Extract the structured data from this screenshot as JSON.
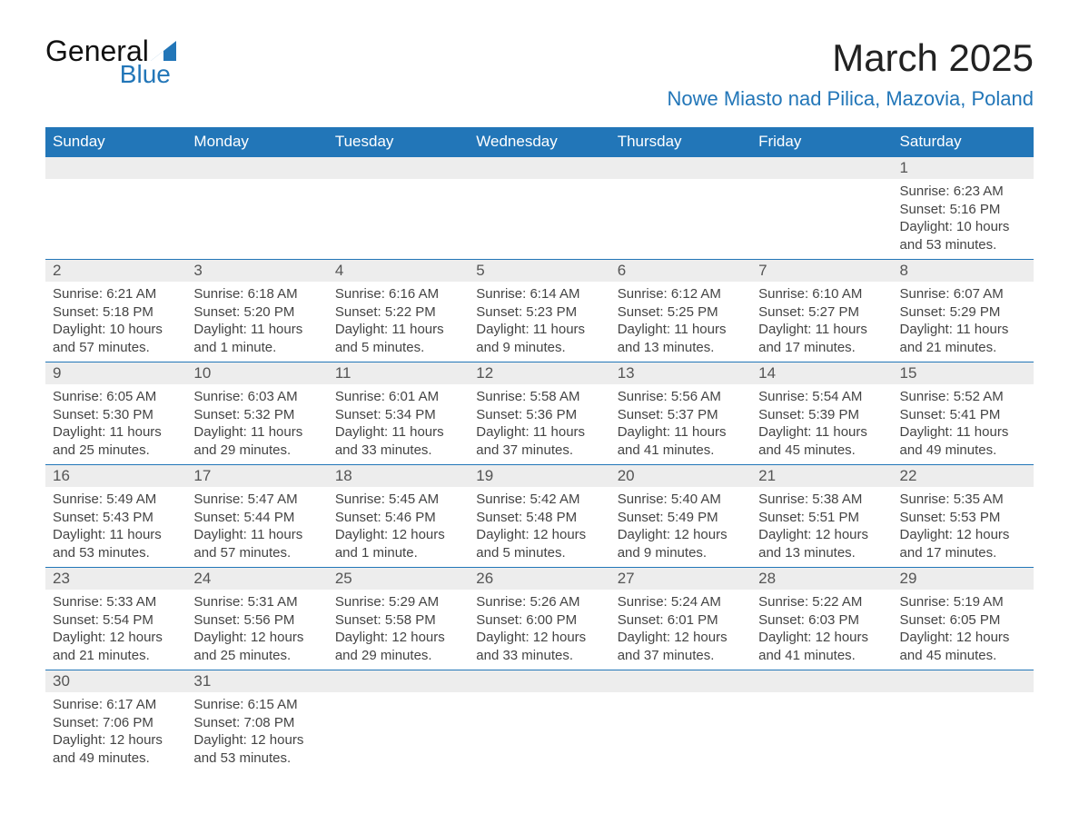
{
  "logo": {
    "name_part1": "General",
    "name_part2": "Blue"
  },
  "header": {
    "month_title": "March 2025",
    "location": "Nowe Miasto nad Pilica, Mazovia, Poland"
  },
  "colors": {
    "brand_blue": "#2276b8",
    "header_bg": "#2276b8",
    "header_text": "#ffffff",
    "daynum_bg": "#ededed",
    "text": "#333333"
  },
  "weekdays": [
    "Sunday",
    "Monday",
    "Tuesday",
    "Wednesday",
    "Thursday",
    "Friday",
    "Saturday"
  ],
  "weeks": [
    [
      null,
      null,
      null,
      null,
      null,
      null,
      {
        "n": "1",
        "sr": "Sunrise: 6:23 AM",
        "ss": "Sunset: 5:16 PM",
        "d1": "Daylight: 10 hours",
        "d2": "and 53 minutes."
      }
    ],
    [
      {
        "n": "2",
        "sr": "Sunrise: 6:21 AM",
        "ss": "Sunset: 5:18 PM",
        "d1": "Daylight: 10 hours",
        "d2": "and 57 minutes."
      },
      {
        "n": "3",
        "sr": "Sunrise: 6:18 AM",
        "ss": "Sunset: 5:20 PM",
        "d1": "Daylight: 11 hours",
        "d2": "and 1 minute."
      },
      {
        "n": "4",
        "sr": "Sunrise: 6:16 AM",
        "ss": "Sunset: 5:22 PM",
        "d1": "Daylight: 11 hours",
        "d2": "and 5 minutes."
      },
      {
        "n": "5",
        "sr": "Sunrise: 6:14 AM",
        "ss": "Sunset: 5:23 PM",
        "d1": "Daylight: 11 hours",
        "d2": "and 9 minutes."
      },
      {
        "n": "6",
        "sr": "Sunrise: 6:12 AM",
        "ss": "Sunset: 5:25 PM",
        "d1": "Daylight: 11 hours",
        "d2": "and 13 minutes."
      },
      {
        "n": "7",
        "sr": "Sunrise: 6:10 AM",
        "ss": "Sunset: 5:27 PM",
        "d1": "Daylight: 11 hours",
        "d2": "and 17 minutes."
      },
      {
        "n": "8",
        "sr": "Sunrise: 6:07 AM",
        "ss": "Sunset: 5:29 PM",
        "d1": "Daylight: 11 hours",
        "d2": "and 21 minutes."
      }
    ],
    [
      {
        "n": "9",
        "sr": "Sunrise: 6:05 AM",
        "ss": "Sunset: 5:30 PM",
        "d1": "Daylight: 11 hours",
        "d2": "and 25 minutes."
      },
      {
        "n": "10",
        "sr": "Sunrise: 6:03 AM",
        "ss": "Sunset: 5:32 PM",
        "d1": "Daylight: 11 hours",
        "d2": "and 29 minutes."
      },
      {
        "n": "11",
        "sr": "Sunrise: 6:01 AM",
        "ss": "Sunset: 5:34 PM",
        "d1": "Daylight: 11 hours",
        "d2": "and 33 minutes."
      },
      {
        "n": "12",
        "sr": "Sunrise: 5:58 AM",
        "ss": "Sunset: 5:36 PM",
        "d1": "Daylight: 11 hours",
        "d2": "and 37 minutes."
      },
      {
        "n": "13",
        "sr": "Sunrise: 5:56 AM",
        "ss": "Sunset: 5:37 PM",
        "d1": "Daylight: 11 hours",
        "d2": "and 41 minutes."
      },
      {
        "n": "14",
        "sr": "Sunrise: 5:54 AM",
        "ss": "Sunset: 5:39 PM",
        "d1": "Daylight: 11 hours",
        "d2": "and 45 minutes."
      },
      {
        "n": "15",
        "sr": "Sunrise: 5:52 AM",
        "ss": "Sunset: 5:41 PM",
        "d1": "Daylight: 11 hours",
        "d2": "and 49 minutes."
      }
    ],
    [
      {
        "n": "16",
        "sr": "Sunrise: 5:49 AM",
        "ss": "Sunset: 5:43 PM",
        "d1": "Daylight: 11 hours",
        "d2": "and 53 minutes."
      },
      {
        "n": "17",
        "sr": "Sunrise: 5:47 AM",
        "ss": "Sunset: 5:44 PM",
        "d1": "Daylight: 11 hours",
        "d2": "and 57 minutes."
      },
      {
        "n": "18",
        "sr": "Sunrise: 5:45 AM",
        "ss": "Sunset: 5:46 PM",
        "d1": "Daylight: 12 hours",
        "d2": "and 1 minute."
      },
      {
        "n": "19",
        "sr": "Sunrise: 5:42 AM",
        "ss": "Sunset: 5:48 PM",
        "d1": "Daylight: 12 hours",
        "d2": "and 5 minutes."
      },
      {
        "n": "20",
        "sr": "Sunrise: 5:40 AM",
        "ss": "Sunset: 5:49 PM",
        "d1": "Daylight: 12 hours",
        "d2": "and 9 minutes."
      },
      {
        "n": "21",
        "sr": "Sunrise: 5:38 AM",
        "ss": "Sunset: 5:51 PM",
        "d1": "Daylight: 12 hours",
        "d2": "and 13 minutes."
      },
      {
        "n": "22",
        "sr": "Sunrise: 5:35 AM",
        "ss": "Sunset: 5:53 PM",
        "d1": "Daylight: 12 hours",
        "d2": "and 17 minutes."
      }
    ],
    [
      {
        "n": "23",
        "sr": "Sunrise: 5:33 AM",
        "ss": "Sunset: 5:54 PM",
        "d1": "Daylight: 12 hours",
        "d2": "and 21 minutes."
      },
      {
        "n": "24",
        "sr": "Sunrise: 5:31 AM",
        "ss": "Sunset: 5:56 PM",
        "d1": "Daylight: 12 hours",
        "d2": "and 25 minutes."
      },
      {
        "n": "25",
        "sr": "Sunrise: 5:29 AM",
        "ss": "Sunset: 5:58 PM",
        "d1": "Daylight: 12 hours",
        "d2": "and 29 minutes."
      },
      {
        "n": "26",
        "sr": "Sunrise: 5:26 AM",
        "ss": "Sunset: 6:00 PM",
        "d1": "Daylight: 12 hours",
        "d2": "and 33 minutes."
      },
      {
        "n": "27",
        "sr": "Sunrise: 5:24 AM",
        "ss": "Sunset: 6:01 PM",
        "d1": "Daylight: 12 hours",
        "d2": "and 37 minutes."
      },
      {
        "n": "28",
        "sr": "Sunrise: 5:22 AM",
        "ss": "Sunset: 6:03 PM",
        "d1": "Daylight: 12 hours",
        "d2": "and 41 minutes."
      },
      {
        "n": "29",
        "sr": "Sunrise: 5:19 AM",
        "ss": "Sunset: 6:05 PM",
        "d1": "Daylight: 12 hours",
        "d2": "and 45 minutes."
      }
    ],
    [
      {
        "n": "30",
        "sr": "Sunrise: 6:17 AM",
        "ss": "Sunset: 7:06 PM",
        "d1": "Daylight: 12 hours",
        "d2": "and 49 minutes."
      },
      {
        "n": "31",
        "sr": "Sunrise: 6:15 AM",
        "ss": "Sunset: 7:08 PM",
        "d1": "Daylight: 12 hours",
        "d2": "and 53 minutes."
      },
      null,
      null,
      null,
      null,
      null
    ]
  ]
}
